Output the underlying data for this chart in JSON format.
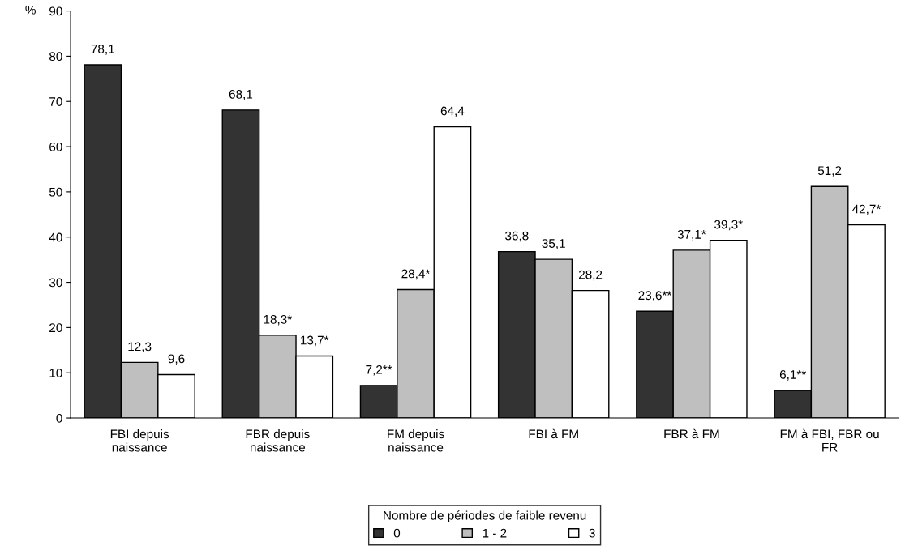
{
  "chart_data": {
    "type": "bar",
    "ylabel": "%",
    "categories": [
      "FBI depuis\nnaissance",
      "FBR depuis\nnaissance",
      "FM depuis\nnaissance",
      "FBI à FM",
      "FBR à FM",
      "FM à FBI, FBR ou\nFR"
    ],
    "series": [
      {
        "name": "0",
        "color": "#333333",
        "values": [
          78.1,
          68.1,
          7.2,
          36.8,
          23.6,
          6.1
        ],
        "value_labels": [
          "78,1",
          "68,1",
          "7,2**",
          "36,8",
          "23,6**",
          "6,1**"
        ]
      },
      {
        "name": "1 - 2",
        "color": "#bfbfbf",
        "values": [
          12.3,
          18.3,
          28.4,
          35.1,
          37.1,
          51.2
        ],
        "value_labels": [
          "12,3",
          "18,3*",
          "28,4*",
          "35,1",
          "37,1*",
          "51,2"
        ]
      },
      {
        "name": "3",
        "color": "#ffffff",
        "values": [
          9.6,
          13.7,
          64.4,
          28.2,
          39.3,
          42.7
        ],
        "value_labels": [
          "9,6",
          "13,7*",
          "64,4",
          "28,2",
          "39,3*",
          "42,7*"
        ]
      }
    ],
    "ylim": [
      0,
      90
    ],
    "yticks": [
      0,
      10,
      20,
      30,
      40,
      50,
      60,
      70,
      80,
      90
    ],
    "grid": false,
    "legend": "bottom",
    "legend_title": "Nombre de périodes de faible revenu"
  }
}
